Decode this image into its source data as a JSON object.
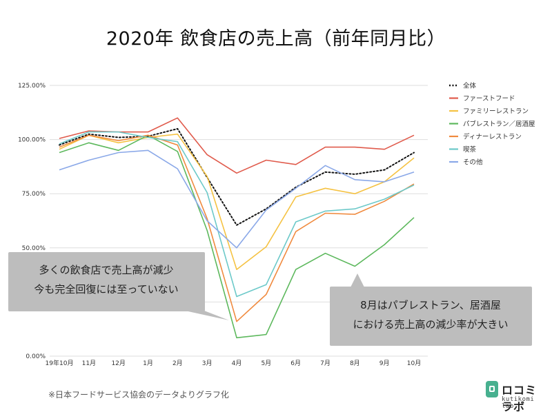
{
  "title": "2020年 飲食店の売上高（前年同月比）",
  "source_note": "※日本フードサービス協会のデータよりグラフ化",
  "logo": {
    "name": "ロコミラボ",
    "sub": "kutikomi lab"
  },
  "callouts": [
    {
      "lines": [
        "多くの飲食店で売上高が減少",
        "今も完全回復には至っていない"
      ]
    },
    {
      "lines": [
        "8月はパブレストラン、居酒屋",
        "における売上高の減少率が大きい"
      ]
    }
  ],
  "chart_data": {
    "type": "line",
    "title": "2020年 飲食店の売上高（前年同月比）",
    "categories": [
      "19年10月",
      "11月",
      "12月",
      "1月",
      "2月",
      "3月",
      "4月",
      "5月",
      "6月",
      "7月",
      "8月",
      "9月",
      "10月"
    ],
    "ylim": [
      0,
      125
    ],
    "yticks": [
      0,
      25,
      50,
      75,
      100,
      125
    ],
    "ytick_labels": [
      "0.00%",
      "25.00%",
      "50.00%",
      "75.00%",
      "100.00%",
      "125.00%"
    ],
    "xlabel": "",
    "ylabel": "",
    "grid": true,
    "legend_position": "right",
    "series": [
      {
        "name": "全体",
        "color": "#111111",
        "dashed": true,
        "values": [
          97.5,
          102.5,
          101,
          101.5,
          105,
          82.5,
          60.5,
          68,
          78,
          85,
          84,
          86,
          94
        ]
      },
      {
        "name": "ファーストフード",
        "color": "#e05a4b",
        "dashed": false,
        "values": [
          100.5,
          104,
          103.5,
          103.5,
          110,
          93,
          84.5,
          90.5,
          88.5,
          96.5,
          96.5,
          95.5,
          102
        ]
      },
      {
        "name": "ファミリーレストラン",
        "color": "#f5c242",
        "dashed": false,
        "values": [
          95.5,
          102,
          98.5,
          101,
          102.5,
          83,
          40,
          50.5,
          73.5,
          77.5,
          75,
          80.5,
          91.5
        ]
      },
      {
        "name": "パブレストラン／居酒屋",
        "color": "#5cb85c",
        "dashed": false,
        "values": [
          94,
          98.5,
          95,
          102,
          94.5,
          58,
          8.5,
          10,
          40,
          47.5,
          41.5,
          51.5,
          64
        ]
      },
      {
        "name": "ディナーレストラン",
        "color": "#f08a3e",
        "dashed": false,
        "values": [
          96.5,
          102,
          99.5,
          102,
          97.5,
          63.5,
          16,
          28.5,
          57.5,
          66,
          65.5,
          71.5,
          79.5
        ]
      },
      {
        "name": "喫茶",
        "color": "#6cc9c9",
        "dashed": false,
        "values": [
          98,
          103.5,
          103.5,
          101,
          99,
          75.5,
          27.5,
          33,
          62,
          67,
          68,
          72.5,
          79
        ]
      },
      {
        "name": "その他",
        "color": "#8aa8e8",
        "dashed": false,
        "values": [
          86,
          90.5,
          94,
          95,
          86.5,
          62.5,
          50,
          67.5,
          77.5,
          88,
          81.5,
          80.5,
          85
        ]
      }
    ]
  }
}
